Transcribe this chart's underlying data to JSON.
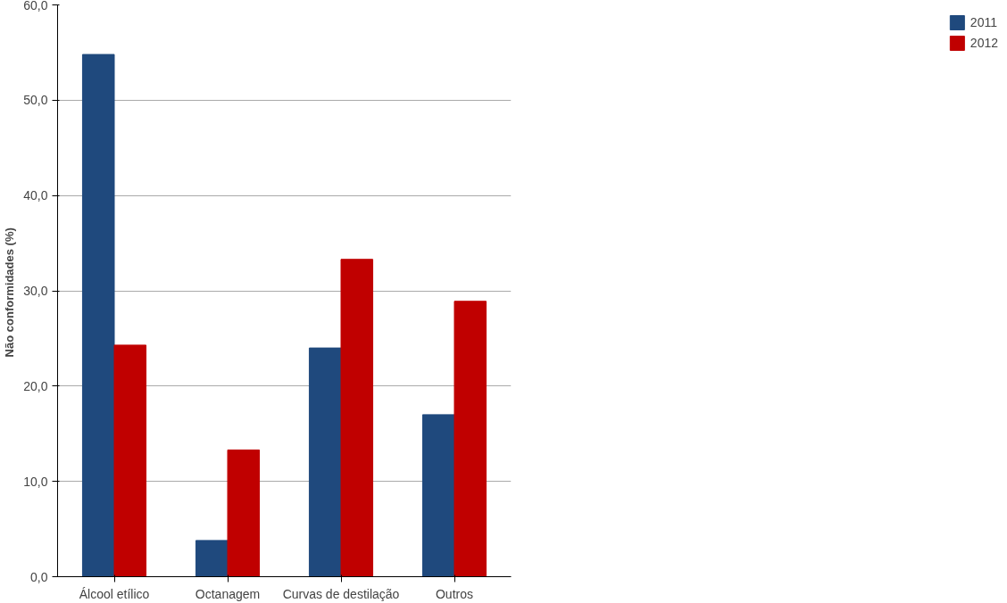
{
  "chart_data": {
    "type": "bar",
    "ylabel": "Não conformidades  (%)",
    "categories": [
      "Álcool etílico",
      "Octanagem",
      "Curvas de destilação",
      "Outros"
    ],
    "series": [
      {
        "name": "2011",
        "color": "#1f497d",
        "values": [
          54.8,
          3.8,
          24.0,
          17.0
        ]
      },
      {
        "name": "2012",
        "color": "#c00000",
        "values": [
          24.3,
          13.3,
          33.3,
          28.9
        ]
      }
    ],
    "ylim": [
      0,
      60
    ],
    "yticks": [
      {
        "value": 0,
        "label": "0,0"
      },
      {
        "value": 10,
        "label": "10,0"
      },
      {
        "value": 20,
        "label": "20,0"
      },
      {
        "value": 30,
        "label": "30,0"
      },
      {
        "value": 40,
        "label": "40,0"
      },
      {
        "value": 50,
        "label": "50,0"
      },
      {
        "value": 60,
        "label": "60,0"
      }
    ],
    "grid": "y",
    "legend": "right"
  }
}
